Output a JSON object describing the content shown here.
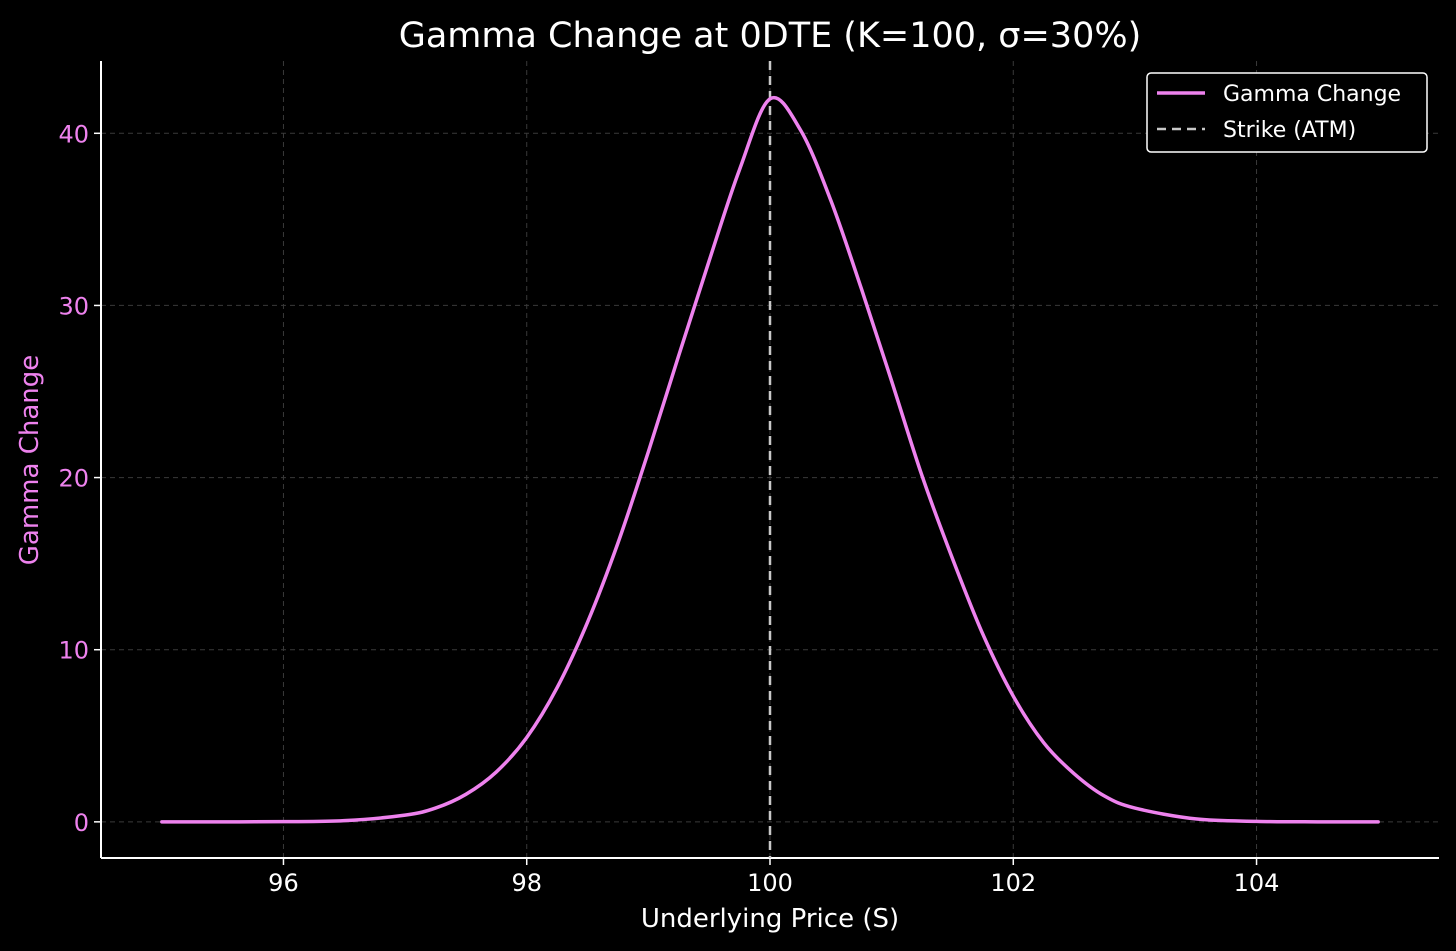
{
  "chart_data": {
    "type": "line",
    "title": "Gamma Change at 0DTE (K=100, σ=30%)",
    "xlabel": "Underlying Price (S)",
    "ylabel": "Gamma Change",
    "xlim": [
      94.5,
      105.5
    ],
    "ylim": [
      -2.1,
      44.2
    ],
    "xticks": [
      96,
      98,
      100,
      102,
      104
    ],
    "yticks": [
      0,
      10,
      20,
      30,
      40
    ],
    "grid": true,
    "legend_position": "top-right",
    "series": [
      {
        "name": "Gamma Change",
        "color": "#ee82ee",
        "style": "solid",
        "x": [
          95.0,
          95.5,
          96.0,
          96.5,
          97.0,
          97.25,
          97.5,
          97.75,
          98.0,
          98.25,
          98.5,
          98.75,
          99.0,
          99.25,
          99.5,
          99.75,
          100.0,
          100.25,
          100.5,
          100.75,
          101.0,
          101.25,
          101.5,
          101.75,
          102.0,
          102.25,
          102.5,
          102.75,
          103.0,
          103.5,
          104.0,
          104.5,
          105.0
        ],
        "y": [
          0.0,
          0.0,
          0.01,
          0.07,
          0.39,
          0.8,
          1.6,
          2.9,
          4.9,
          7.8,
          11.6,
          16.2,
          21.5,
          27.1,
          32.6,
          37.9,
          42.0,
          40.2,
          36.1,
          31.0,
          25.6,
          20.1,
          15.3,
          10.9,
          7.3,
          4.6,
          2.8,
          1.5,
          0.8,
          0.17,
          0.03,
          0.0,
          0.0
        ]
      },
      {
        "name": "Strike (ATM)",
        "color": "#c8c8c8",
        "style": "dashed",
        "x_value": 100
      }
    ]
  }
}
